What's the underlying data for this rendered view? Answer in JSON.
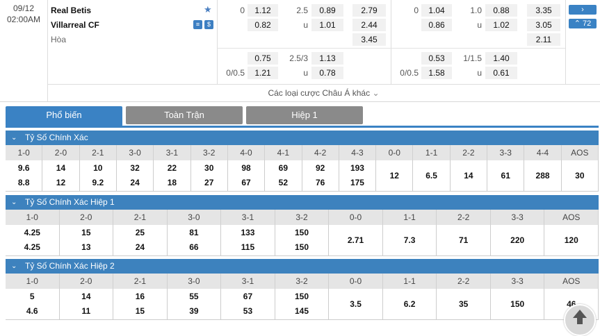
{
  "match": {
    "date": "09/12",
    "time": "02:00AM",
    "home": "Real Betis",
    "away": "Villarreal CF",
    "draw": "Hòa",
    "more_count": "72",
    "ft": {
      "hcap_line1": "0",
      "hcap_h": "1.12",
      "hcap_a": "0.82",
      "ou_line1": "2.5",
      "ou_o": "0.89",
      "ou_u_lbl": "u",
      "ou_u": "1.01",
      "x12_h": "2.79",
      "x12_a": "2.44",
      "x12_d": "3.45",
      "hcap2_h": "0.75",
      "hcap2_line": "0/0.5",
      "hcap2_a": "1.21",
      "ou2_line": "2.5/3",
      "ou2_o": "1.13",
      "ou2_u_lbl": "u",
      "ou2_u": "0.78"
    },
    "h1": {
      "hcap_line1": "0",
      "hcap_h": "1.04",
      "hcap_a": "0.86",
      "ou_line1": "1.0",
      "ou_o": "0.88",
      "ou_u_lbl": "u",
      "ou_u": "1.02",
      "x12_h": "3.35",
      "x12_a": "3.05",
      "x12_d": "2.11",
      "hcap2_h": "0.53",
      "hcap2_line": "0/0.5",
      "hcap2_a": "1.58",
      "ou2_line": "1/1.5",
      "ou2_o": "1.40",
      "ou2_u_lbl": "u",
      "ou2_u": "0.61"
    },
    "more_label": "Các loại cược Châu Á khác"
  },
  "tabs": [
    "Phổ biến",
    "Toàn Trận",
    "Hiệp 1"
  ],
  "sections": [
    {
      "title": "Tỷ Số Chính Xác",
      "headers": [
        "1-0",
        "2-0",
        "2-1",
        "3-0",
        "3-1",
        "3-2",
        "4-0",
        "4-1",
        "4-2",
        "4-3",
        "0-0",
        "1-1",
        "2-2",
        "3-3",
        "4-4",
        "AOS"
      ],
      "cells": [
        [
          "9.6",
          "8.8"
        ],
        [
          "14",
          "12"
        ],
        [
          "10",
          "9.2"
        ],
        [
          "32",
          "24"
        ],
        [
          "22",
          "18"
        ],
        [
          "30",
          "27"
        ],
        [
          "98",
          "67"
        ],
        [
          "69",
          "52"
        ],
        [
          "92",
          "76"
        ],
        [
          "193",
          "175"
        ],
        [
          "12"
        ],
        [
          "6.5"
        ],
        [
          "14"
        ],
        [
          "61"
        ],
        [
          "288"
        ],
        [
          "30"
        ]
      ]
    },
    {
      "title": "Tỷ Số Chính Xác Hiệp 1",
      "headers": [
        "1-0",
        "2-0",
        "2-1",
        "3-0",
        "3-1",
        "3-2",
        "0-0",
        "1-1",
        "2-2",
        "3-3",
        "AOS"
      ],
      "cells": [
        [
          "4.25",
          "4.25"
        ],
        [
          "15",
          "13"
        ],
        [
          "25",
          "24"
        ],
        [
          "81",
          "66"
        ],
        [
          "133",
          "115"
        ],
        [
          "150",
          "150"
        ],
        [
          "2.71"
        ],
        [
          "7.3"
        ],
        [
          "71"
        ],
        [
          "220"
        ],
        [
          "120"
        ]
      ]
    },
    {
      "title": "Tỷ Số Chính Xác Hiệp 2",
      "headers": [
        "1-0",
        "2-0",
        "2-1",
        "3-0",
        "3-1",
        "3-2",
        "0-0",
        "1-1",
        "2-2",
        "3-3",
        "AOS"
      ],
      "cells": [
        [
          "5",
          "4.6"
        ],
        [
          "14",
          "11"
        ],
        [
          "16",
          "15"
        ],
        [
          "55",
          "39"
        ],
        [
          "67",
          "53"
        ],
        [
          "150",
          "145"
        ],
        [
          "3.5"
        ],
        [
          "6.2"
        ],
        [
          "35"
        ],
        [
          "150"
        ],
        [
          "46"
        ]
      ]
    }
  ]
}
